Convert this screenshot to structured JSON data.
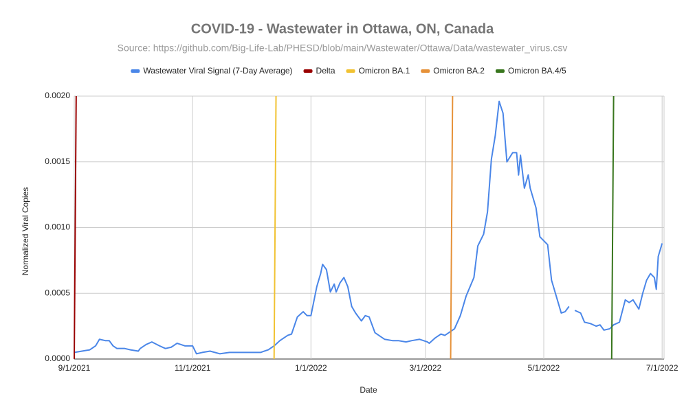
{
  "chart_data": {
    "type": "line",
    "title": "COVID-19 -  Wastewater in Ottawa, ON, Canada",
    "subtitle": "Source: https://github.com/Big-Life-Lab/PHESD/blob/main/Wastewater/Ottawa/Data/wastewater_virus.csv",
    "x_label": "Date",
    "y_label": "Normalized Viral Copies",
    "xlim": [
      "9/1/2021",
      "7/2/2022"
    ],
    "xticks": [
      "9/1/2021",
      "11/1/2021",
      "1/1/2022",
      "3/1/2022",
      "5/1/2022",
      "7/1/2022"
    ],
    "ylim": [
      0,
      0.002
    ],
    "yticks": [
      {
        "value": 0,
        "label": "0.0000"
      },
      {
        "value": 0.0005,
        "label": "0.0005"
      },
      {
        "value": 0.001,
        "label": "0.0010"
      },
      {
        "value": 0.0015,
        "label": "0.0015"
      },
      {
        "value": 0.002,
        "label": "0.0020"
      }
    ],
    "grid": true,
    "legend": "top",
    "series": [
      {
        "name": "Wastewater Viral Signal (7-Day Average)",
        "color": "#4a86e8",
        "x": [
          "9/1/2021",
          "9/5/2021",
          "9/9/2021",
          "9/12/2021",
          "9/14/2021",
          "9/17/2021",
          "9/19/2021",
          "9/21/2021",
          "9/23/2021",
          "9/27/2021",
          "9/30/2021",
          "10/4/2021",
          "10/5/2021",
          "10/8/2021",
          "10/11/2021",
          "10/15/2021",
          "10/18/2021",
          "10/21/2021",
          "10/24/2021",
          "10/28/2021",
          "11/1/2021",
          "11/3/2021",
          "11/6/2021",
          "11/10/2021",
          "11/15/2021",
          "11/20/2021",
          "11/25/2021",
          "12/1/2021",
          "12/6/2021",
          "12/10/2021",
          "12/13/2021",
          "12/16/2021",
          "12/20/2021",
          "12/22/2021",
          "12/25/2021",
          "12/28/2021",
          "12/30/2021",
          "1/1/2022",
          "1/4/2022",
          "1/6/2022",
          "1/7/2022",
          "1/9/2022",
          "1/11/2022",
          "1/13/2022",
          "1/14/2022",
          "1/16/2022",
          "1/18/2022",
          "1/20/2022",
          "1/22/2022",
          "1/24/2022",
          "1/27/2022",
          "1/29/2022",
          "1/31/2022",
          "2/3/2022",
          "2/5/2022",
          "2/8/2022",
          "2/12/2022",
          "2/15/2022",
          "2/19/2022",
          "2/22/2022",
          "2/26/2022",
          "3/2/2022",
          "3/3/2022",
          "3/6/2022",
          "3/9/2022",
          "3/11/2022",
          "3/14/2022",
          "3/16/2022",
          "3/19/2022",
          "3/22/2022",
          "3/26/2022",
          "3/28/2022",
          "3/31/2022",
          "4/2/2022",
          "4/4/2022",
          "4/6/2022",
          "4/8/2022",
          "4/10/2022",
          "4/11/2022",
          "4/12/2022",
          "4/15/2022",
          "4/17/2022",
          "4/18/2022",
          "4/19/2022",
          "4/21/2022",
          "4/23/2022",
          "4/24/2022",
          "4/27/2022",
          "4/29/2022",
          "5/1/2022",
          "5/3/2022",
          "5/5/2022",
          "5/8/2022",
          "5/10/2022",
          "5/12/2022",
          "5/14/2022",
          "5/16/2022",
          "5/17/2022",
          "5/20/2022",
          "5/22/2022",
          "5/25/2022",
          "5/28/2022",
          "5/30/2022",
          "6/1/2022",
          "6/4/2022",
          "6/6/2022",
          "6/9/2022",
          "6/12/2022",
          "6/14/2022",
          "6/16/2022",
          "6/19/2022",
          "6/21/2022",
          "6/23/2022",
          "6/25/2022",
          "6/27/2022",
          "6/28/2022",
          "6/29/2022",
          "7/1/2022"
        ],
        "values": [
          5e-05,
          6e-05,
          7e-05,
          0.0001,
          0.00015,
          0.00014,
          0.00014,
          0.0001,
          8e-05,
          8e-05,
          7e-05,
          6e-05,
          8e-05,
          0.00011,
          0.00013,
          0.0001,
          8e-05,
          9e-05,
          0.00012,
          0.0001,
          0.0001,
          4e-05,
          5e-05,
          6e-05,
          4e-05,
          5e-05,
          5e-05,
          5e-05,
          5e-05,
          7e-05,
          0.0001,
          0.00014,
          0.00018,
          0.00019,
          0.00032,
          0.00036,
          0.00033,
          0.00033,
          0.00055,
          0.00065,
          0.00072,
          0.00068,
          0.00051,
          0.00057,
          0.00051,
          0.00058,
          0.00062,
          0.00055,
          0.0004,
          0.00035,
          0.00029,
          0.00033,
          0.00032,
          0.0002,
          0.00018,
          0.00015,
          0.00014,
          0.00014,
          0.00013,
          0.00014,
          0.00015,
          0.00013,
          0.00012,
          0.00016,
          0.00019,
          0.00018,
          0.00021,
          0.00023,
          0.00033,
          0.00048,
          0.00062,
          0.00086,
          0.00095,
          0.00112,
          0.00152,
          0.0017,
          0.00196,
          0.00187,
          0.00168,
          0.0015,
          0.00157,
          0.00157,
          0.0014,
          0.00155,
          0.0013,
          0.0014,
          0.0013,
          0.00115,
          0.00093,
          0.0009,
          0.00087,
          0.0006,
          0.00045,
          0.00035,
          0.00036,
          0.0004,
          null,
          0.00037,
          0.00035,
          0.00028,
          0.00027,
          0.00025,
          0.00026,
          0.00022,
          0.00023,
          0.00026,
          0.00028,
          0.00045,
          0.00043,
          0.00045,
          0.00038,
          0.0005,
          0.0006,
          0.00065,
          0.00062,
          0.00053,
          0.00078,
          0.00088
        ]
      },
      {
        "name": "Delta",
        "color": "#990000",
        "x": [
          "9/1/2021",
          "9/2/2021"
        ],
        "values": [
          0,
          0.002
        ]
      },
      {
        "name": "Omicron BA.1",
        "color": "#f1c232",
        "x": [
          "12/13/2021",
          "12/14/2021"
        ],
        "values": [
          0,
          0.002
        ]
      },
      {
        "name": "Omicron BA.2",
        "color": "#e69138",
        "x": [
          "3/14/2022",
          "3/15/2022"
        ],
        "values": [
          0,
          0.002
        ]
      },
      {
        "name": "Omicron BA.4/5",
        "color": "#38761d",
        "x": [
          "6/5/2022",
          "6/6/2022"
        ],
        "values": [
          0,
          0.002
        ]
      }
    ]
  }
}
